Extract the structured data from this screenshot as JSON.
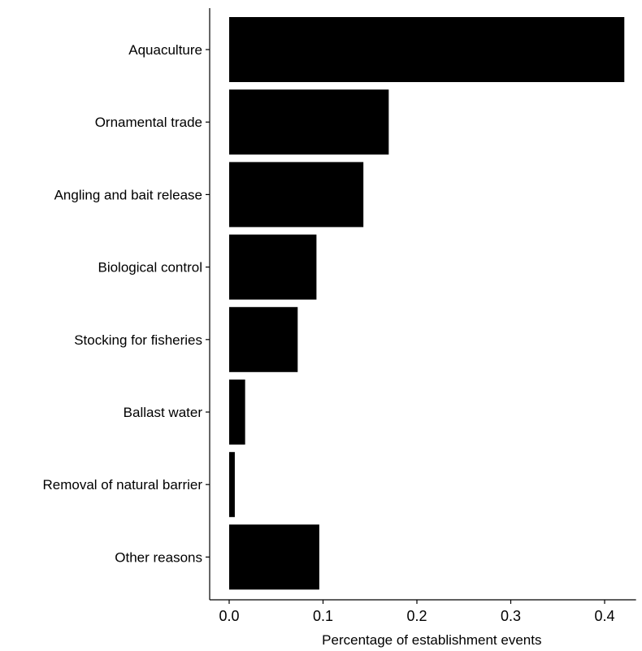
{
  "chart_data": {
    "type": "bar",
    "orientation": "horizontal",
    "categories": [
      "Aquaculture",
      "Ornamental trade",
      "Angling and bait release",
      "Biological control",
      "Stocking for fisheries",
      "Ballast water",
      "Removal of natural barrier",
      "Other reasons"
    ],
    "values": [
      0.421,
      0.17,
      0.143,
      0.093,
      0.073,
      0.017,
      0.006,
      0.096
    ],
    "xlabel": "Percentage of establishment events",
    "ylabel": "",
    "xlim": [
      0,
      0.43
    ],
    "xticks": [
      0.0,
      0.1,
      0.2,
      0.3,
      0.4
    ],
    "xtick_labels": [
      "0.0",
      "0.1",
      "0.2",
      "0.3",
      "0.4"
    ],
    "bar_color": "#000000",
    "grid": false,
    "legend": "none"
  }
}
